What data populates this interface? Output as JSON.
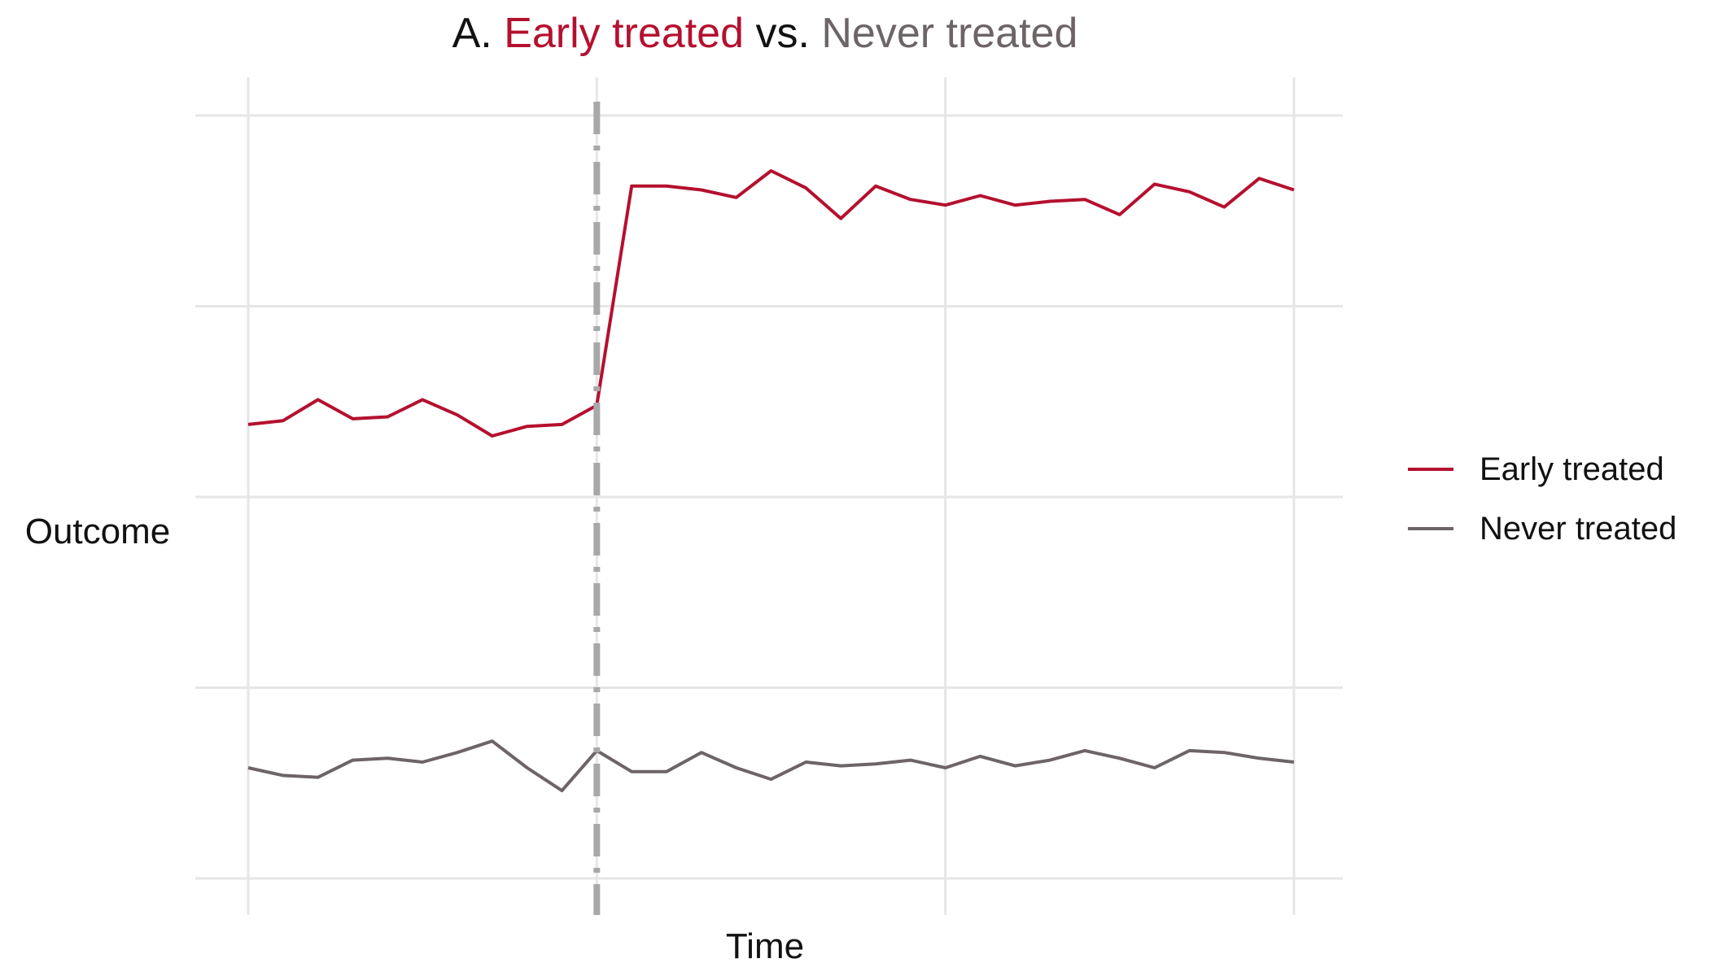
{
  "chart_data": {
    "type": "line",
    "title": {
      "prefix": "A. ",
      "treated": "Early treated",
      "middle": " vs. ",
      "control": "Never treated"
    },
    "xlabel": "Time",
    "ylabel": "Outcome",
    "treatment_time": 10,
    "xlim": [
      0,
      30
    ],
    "ylim": [
      0,
      4
    ],
    "grid": true,
    "legend_position": "right",
    "series": [
      {
        "name": "Early treated",
        "color": "#b5102f",
        "x": [
          0,
          1,
          2,
          3,
          4,
          5,
          6,
          7,
          8,
          9,
          10,
          11,
          12,
          13,
          14,
          15,
          16,
          17,
          18,
          19,
          20,
          21,
          22,
          23,
          24,
          25,
          26,
          27,
          28,
          29,
          30
        ],
        "values": [
          2.38,
          2.4,
          2.51,
          2.41,
          2.42,
          2.51,
          2.43,
          2.32,
          2.37,
          2.38,
          2.48,
          3.63,
          3.63,
          3.61,
          3.57,
          3.71,
          3.62,
          3.46,
          3.63,
          3.56,
          3.53,
          3.58,
          3.53,
          3.55,
          3.56,
          3.48,
          3.64,
          3.6,
          3.52,
          3.67,
          3.61
        ]
      },
      {
        "name": "Never treated",
        "color": "#6d6466",
        "x": [
          0,
          1,
          2,
          3,
          4,
          5,
          6,
          7,
          8,
          9,
          10,
          11,
          12,
          13,
          14,
          15,
          16,
          17,
          18,
          19,
          20,
          21,
          22,
          23,
          24,
          25,
          26,
          27,
          28,
          29,
          30
        ],
        "values": [
          0.58,
          0.54,
          0.53,
          0.62,
          0.63,
          0.61,
          0.66,
          0.72,
          0.58,
          0.46,
          0.67,
          0.56,
          0.56,
          0.66,
          0.58,
          0.52,
          0.61,
          0.59,
          0.6,
          0.62,
          0.58,
          0.64,
          0.59,
          0.62,
          0.67,
          0.63,
          0.58,
          0.67,
          0.66,
          0.63,
          0.61
        ]
      }
    ]
  }
}
